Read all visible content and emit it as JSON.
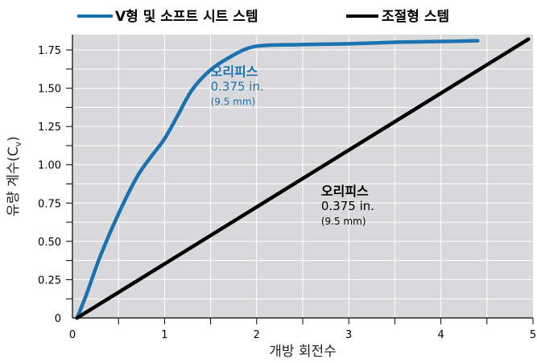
{
  "chart_data": {
    "type": "line",
    "xlabel": "개방 회전수",
    "ylabel": "유량 계수(C",
    "ylabel_sub": "v",
    "ylabel_close": ")",
    "xlim": [
      0,
      5
    ],
    "ylim": [
      0,
      1.85
    ],
    "grid": true,
    "legend_position": "top",
    "x_ticks": [
      "0",
      "1",
      "2",
      "3",
      "4",
      "5"
    ],
    "y_ticks": [
      "0",
      "0.25",
      "0.50",
      "0.75",
      "1.00",
      "1.25",
      "1.50",
      "1.75"
    ],
    "series": [
      {
        "name": "V형 및 소프트 시트 스템",
        "color": "#1a73b0",
        "x": [
          0.05,
          0.15,
          0.3,
          0.5,
          0.7,
          0.85,
          1.0,
          1.15,
          1.3,
          1.5,
          1.7,
          1.9,
          2.1,
          2.5,
          3.0,
          3.5,
          4.0,
          4.4
        ],
        "y": [
          0.0,
          0.15,
          0.4,
          0.68,
          0.92,
          1.05,
          1.17,
          1.33,
          1.49,
          1.62,
          1.7,
          1.76,
          1.78,
          1.785,
          1.79,
          1.8,
          1.805,
          1.81
        ]
      },
      {
        "name": "조절형 스템",
        "color": "#000000",
        "x": [
          0.05,
          4.95
        ],
        "y": [
          0.0,
          1.82
        ]
      }
    ],
    "annotations": [
      {
        "series": 0,
        "lines": [
          "오리피스",
          "0.375 in.",
          "(9.5 mm)"
        ],
        "color": "#1a73b0"
      },
      {
        "series": 1,
        "lines": [
          "오리피스",
          "0.375 in.",
          "(9.5 mm)"
        ],
        "color": "#000000"
      }
    ]
  }
}
